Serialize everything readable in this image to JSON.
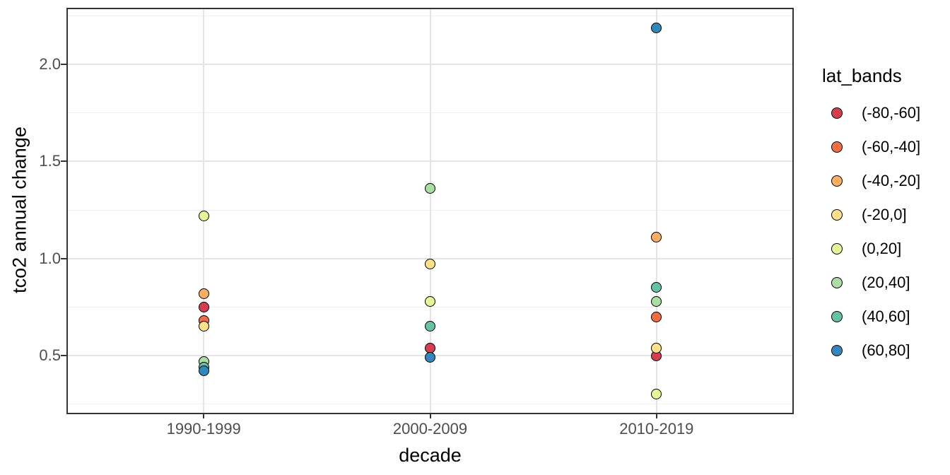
{
  "chart_data": {
    "type": "scatter",
    "title": "",
    "xlabel": "decade",
    "ylabel": "tco2 annual change",
    "legend_title": "lat_bands",
    "legend_position": "right",
    "grid": true,
    "categories": [
      "1990-1999",
      "2000-2009",
      "2010-2019"
    ],
    "ylim": [
      0.205,
      2.285
    ],
    "y_ticks": [
      0.5,
      1.0,
      1.5,
      2.0
    ],
    "y_tick_labels": [
      "0.5",
      "1.0",
      "1.5",
      "2.0"
    ],
    "y_minor_ticks": [
      0.25,
      0.75,
      1.25,
      1.75,
      2.25
    ],
    "series": [
      {
        "name": "(-80,-60]",
        "color": "#D53E4F",
        "points": [
          {
            "x": "1990-1999",
            "y": 0.75
          },
          {
            "x": "2000-2009",
            "y": 0.54
          },
          {
            "x": "2010-2019",
            "y": 0.5
          }
        ]
      },
      {
        "name": "(-60,-40]",
        "color": "#F46D43",
        "points": [
          {
            "x": "1990-1999",
            "y": 0.68
          },
          {
            "x": "2010-2019",
            "y": 0.7
          }
        ]
      },
      {
        "name": "(-40,-20]",
        "color": "#FDAE61",
        "points": [
          {
            "x": "1990-1999",
            "y": 0.82
          },
          {
            "x": "2010-2019",
            "y": 1.11
          }
        ]
      },
      {
        "name": "(-20,0]",
        "color": "#FEE08B",
        "points": [
          {
            "x": "1990-1999",
            "y": 0.65
          },
          {
            "x": "2000-2009",
            "y": 0.97
          },
          {
            "x": "2010-2019",
            "y": 0.54
          }
        ]
      },
      {
        "name": "(0,20]",
        "color": "#E6F598",
        "points": [
          {
            "x": "1990-1999",
            "y": 1.22
          },
          {
            "x": "2000-2009",
            "y": 0.78
          },
          {
            "x": "2010-2019",
            "y": 0.3
          }
        ]
      },
      {
        "name": "(20,40]",
        "color": "#ABDDA4",
        "points": [
          {
            "x": "1990-1999",
            "y": 0.47
          },
          {
            "x": "2000-2009",
            "y": 1.36
          },
          {
            "x": "2010-2019",
            "y": 0.78
          }
        ]
      },
      {
        "name": "(40,60]",
        "color": "#66C2A5",
        "points": [
          {
            "x": "1990-1999",
            "y": 0.44
          },
          {
            "x": "2000-2009",
            "y": 0.65
          },
          {
            "x": "2010-2019",
            "y": 0.85
          }
        ]
      },
      {
        "name": "(60,80]",
        "color": "#3288BD",
        "points": [
          {
            "x": "1990-1999",
            "y": 0.42
          },
          {
            "x": "2000-2009",
            "y": 0.49
          },
          {
            "x": "2010-2019",
            "y": 2.19
          }
        ]
      }
    ],
    "style": {
      "panel_border": "#333333",
      "grid_major": "#e4e4e4",
      "grid_minor": "#f0f0f0",
      "tick_label_color": "#4d4d4d",
      "text_color": "#000000",
      "background": "#ffffff"
    }
  }
}
